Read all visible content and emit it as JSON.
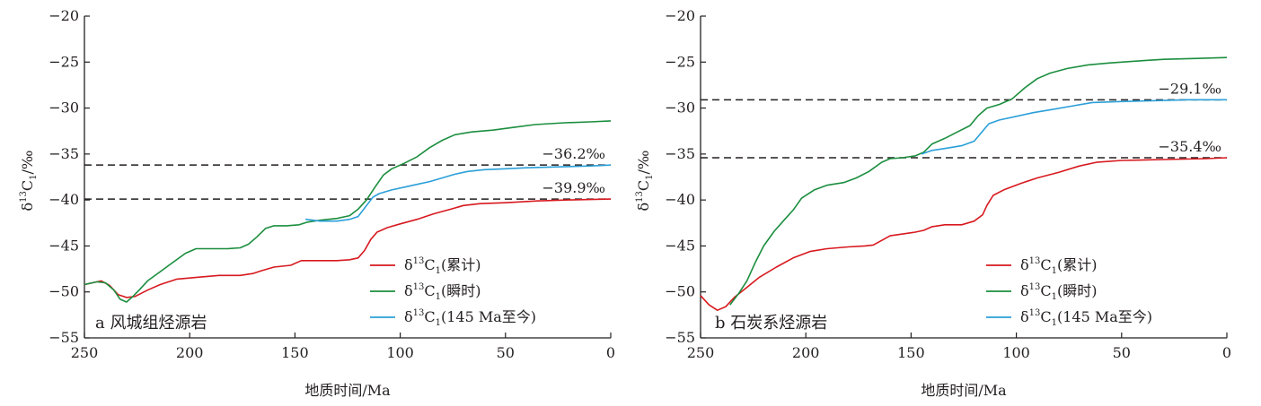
{
  "chart_data": [
    {
      "type": "line",
      "panel_label": "a 风城组烃源岩",
      "xlabel": "地质时间/Ma",
      "ylabel": "δ13C1/‰",
      "xlim": [
        250,
        0
      ],
      "ylim": [
        -55,
        -20
      ],
      "x_ticks": [
        "250",
        "200",
        "150",
        "100",
        "50",
        "0"
      ],
      "y_ticks": [
        "−20",
        "−25",
        "−30",
        "−35",
        "−40",
        "−45",
        "−50",
        "−55"
      ],
      "reference_lines": [
        {
          "y": -36.2,
          "label": "−36.2‰"
        },
        {
          "y": -39.9,
          "label": "−39.9‰"
        }
      ],
      "legend_position": "bottom-right",
      "series": [
        {
          "name": "δ13C1(累计)",
          "color": "#d7191f",
          "points": [
            [
              250,
              -49.2
            ],
            [
              242,
              -48.8
            ],
            [
              238,
              -49.3
            ],
            [
              234,
              -50.3
            ],
            [
              230,
              -50.6
            ],
            [
              226,
              -50.5
            ],
            [
              220,
              -49.8
            ],
            [
              214,
              -49.2
            ],
            [
              206,
              -48.6
            ],
            [
              196,
              -48.4
            ],
            [
              186,
              -48.2
            ],
            [
              176,
              -48.2
            ],
            [
              170,
              -48.0
            ],
            [
              166,
              -47.7
            ],
            [
              160,
              -47.3
            ],
            [
              152,
              -47.1
            ],
            [
              147,
              -46.6
            ],
            [
              140,
              -46.6
            ],
            [
              130,
              -46.6
            ],
            [
              124,
              -46.5
            ],
            [
              120,
              -46.3
            ],
            [
              117,
              -45.5
            ],
            [
              114,
              -44.3
            ],
            [
              111,
              -43.5
            ],
            [
              106,
              -43.0
            ],
            [
              100,
              -42.6
            ],
            [
              92,
              -42.1
            ],
            [
              84,
              -41.5
            ],
            [
              76,
              -41.0
            ],
            [
              70,
              -40.6
            ],
            [
              62,
              -40.4
            ],
            [
              50,
              -40.3
            ],
            [
              35,
              -40.1
            ],
            [
              20,
              -40.0
            ],
            [
              0,
              -39.9
            ]
          ]
        },
        {
          "name": "δ13C1(瞬时)",
          "color": "#1b8e3e",
          "points": [
            [
              250,
              -49.2
            ],
            [
              244,
              -48.9
            ],
            [
              240,
              -49.0
            ],
            [
              236,
              -49.8
            ],
            [
              233,
              -50.8
            ],
            [
              230,
              -51.1
            ],
            [
              227,
              -50.5
            ],
            [
              224,
              -49.8
            ],
            [
              220,
              -48.8
            ],
            [
              214,
              -47.8
            ],
            [
              208,
              -46.8
            ],
            [
              202,
              -45.8
            ],
            [
              197,
              -45.3
            ],
            [
              190,
              -45.3
            ],
            [
              182,
              -45.3
            ],
            [
              176,
              -45.2
            ],
            [
              172,
              -44.8
            ],
            [
              168,
              -44.0
            ],
            [
              164,
              -43.1
            ],
            [
              160,
              -42.8
            ],
            [
              154,
              -42.8
            ],
            [
              148,
              -42.7
            ],
            [
              144,
              -42.4
            ],
            [
              138,
              -42.2
            ],
            [
              130,
              -42.0
            ],
            [
              124,
              -41.7
            ],
            [
              120,
              -41.0
            ],
            [
              116,
              -40.0
            ],
            [
              112,
              -38.6
            ],
            [
              108,
              -37.3
            ],
            [
              104,
              -36.6
            ],
            [
              98,
              -36.0
            ],
            [
              92,
              -35.3
            ],
            [
              86,
              -34.3
            ],
            [
              80,
              -33.5
            ],
            [
              74,
              -32.9
            ],
            [
              66,
              -32.6
            ],
            [
              56,
              -32.4
            ],
            [
              46,
              -32.1
            ],
            [
              36,
              -31.8
            ],
            [
              22,
              -31.6
            ],
            [
              10,
              -31.5
            ],
            [
              0,
              -31.4
            ]
          ]
        },
        {
          "name": "δ13C1(145 Ma至今)",
          "color": "#2a9fd8",
          "points": [
            [
              145,
              -42.1
            ],
            [
              138,
              -42.3
            ],
            [
              130,
              -42.3
            ],
            [
              124,
              -42.1
            ],
            [
              120,
              -41.8
            ],
            [
              116,
              -40.6
            ],
            [
              113,
              -39.7
            ],
            [
              110,
              -39.3
            ],
            [
              104,
              -38.9
            ],
            [
              98,
              -38.6
            ],
            [
              92,
              -38.3
            ],
            [
              86,
              -38.0
            ],
            [
              80,
              -37.6
            ],
            [
              74,
              -37.2
            ],
            [
              68,
              -36.9
            ],
            [
              60,
              -36.7
            ],
            [
              50,
              -36.6
            ],
            [
              40,
              -36.5
            ],
            [
              25,
              -36.4
            ],
            [
              10,
              -36.3
            ],
            [
              0,
              -36.2
            ]
          ]
        }
      ]
    },
    {
      "type": "line",
      "panel_label": "b 石炭系烃源岩",
      "xlabel": "地质时间/Ma",
      "ylabel": "δ13C1/‰",
      "xlim": [
        250,
        0
      ],
      "ylim": [
        -55,
        -20
      ],
      "x_ticks": [
        "250",
        "200",
        "150",
        "100",
        "50",
        "0"
      ],
      "y_ticks": [
        "−20",
        "−25",
        "−30",
        "−35",
        "−40",
        "−45",
        "−50",
        "−55"
      ],
      "reference_lines": [
        {
          "y": -29.1,
          "label": "−29.1‰"
        },
        {
          "y": -35.4,
          "label": "−35.4‰"
        }
      ],
      "legend_position": "bottom-right",
      "series": [
        {
          "name": "δ13C1(累计)",
          "color": "#d7191f",
          "points": [
            [
              250,
              -50.4
            ],
            [
              246,
              -51.4
            ],
            [
              242,
              -52.0
            ],
            [
              238,
              -51.6
            ],
            [
              234,
              -50.6
            ],
            [
              228,
              -49.5
            ],
            [
              222,
              -48.4
            ],
            [
              214,
              -47.3
            ],
            [
              206,
              -46.3
            ],
            [
              198,
              -45.6
            ],
            [
              190,
              -45.3
            ],
            [
              180,
              -45.1
            ],
            [
              172,
              -45.0
            ],
            [
              168,
              -44.9
            ],
            [
              164,
              -44.4
            ],
            [
              160,
              -43.9
            ],
            [
              154,
              -43.7
            ],
            [
              148,
              -43.5
            ],
            [
              144,
              -43.3
            ],
            [
              140,
              -42.9
            ],
            [
              134,
              -42.7
            ],
            [
              126,
              -42.7
            ],
            [
              120,
              -42.3
            ],
            [
              116,
              -41.6
            ],
            [
              114,
              -40.6
            ],
            [
              111,
              -39.5
            ],
            [
              106,
              -38.9
            ],
            [
              98,
              -38.2
            ],
            [
              90,
              -37.6
            ],
            [
              80,
              -37.0
            ],
            [
              70,
              -36.3
            ],
            [
              62,
              -35.9
            ],
            [
              50,
              -35.7
            ],
            [
              30,
              -35.6
            ],
            [
              10,
              -35.5
            ],
            [
              0,
              -35.4
            ]
          ]
        },
        {
          "name": "δ13C1(瞬时)",
          "color": "#1b8e3e",
          "points": [
            [
              236,
              -51.4
            ],
            [
              232,
              -50.2
            ],
            [
              228,
              -48.8
            ],
            [
              224,
              -46.8
            ],
            [
              220,
              -45.0
            ],
            [
              215,
              -43.4
            ],
            [
              210,
              -42.1
            ],
            [
              206,
              -41.1
            ],
            [
              202,
              -39.8
            ],
            [
              196,
              -38.9
            ],
            [
              190,
              -38.4
            ],
            [
              182,
              -38.1
            ],
            [
              176,
              -37.6
            ],
            [
              170,
              -36.9
            ],
            [
              164,
              -35.9
            ],
            [
              160,
              -35.5
            ],
            [
              154,
              -35.4
            ],
            [
              148,
              -35.2
            ],
            [
              144,
              -34.8
            ],
            [
              140,
              -33.9
            ],
            [
              134,
              -33.3
            ],
            [
              128,
              -32.6
            ],
            [
              122,
              -31.9
            ],
            [
              118,
              -30.8
            ],
            [
              114,
              -30.0
            ],
            [
              108,
              -29.6
            ],
            [
              102,
              -29.0
            ],
            [
              96,
              -27.8
            ],
            [
              90,
              -26.8
            ],
            [
              84,
              -26.2
            ],
            [
              76,
              -25.7
            ],
            [
              66,
              -25.3
            ],
            [
              56,
              -25.1
            ],
            [
              44,
              -24.9
            ],
            [
              30,
              -24.7
            ],
            [
              14,
              -24.6
            ],
            [
              0,
              -24.5
            ]
          ]
        },
        {
          "name": "δ13C1(145 Ma至今)",
          "color": "#2a9fd8",
          "points": [
            [
              145,
              -35.0
            ],
            [
              140,
              -34.6
            ],
            [
              134,
              -34.4
            ],
            [
              126,
              -34.1
            ],
            [
              120,
              -33.6
            ],
            [
              116,
              -32.5
            ],
            [
              113,
              -31.7
            ],
            [
              108,
              -31.3
            ],
            [
              100,
              -30.9
            ],
            [
              92,
              -30.5
            ],
            [
              84,
              -30.2
            ],
            [
              74,
              -29.8
            ],
            [
              64,
              -29.4
            ],
            [
              52,
              -29.3
            ],
            [
              36,
              -29.2
            ],
            [
              18,
              -29.1
            ],
            [
              0,
              -29.1
            ]
          ]
        }
      ]
    }
  ]
}
